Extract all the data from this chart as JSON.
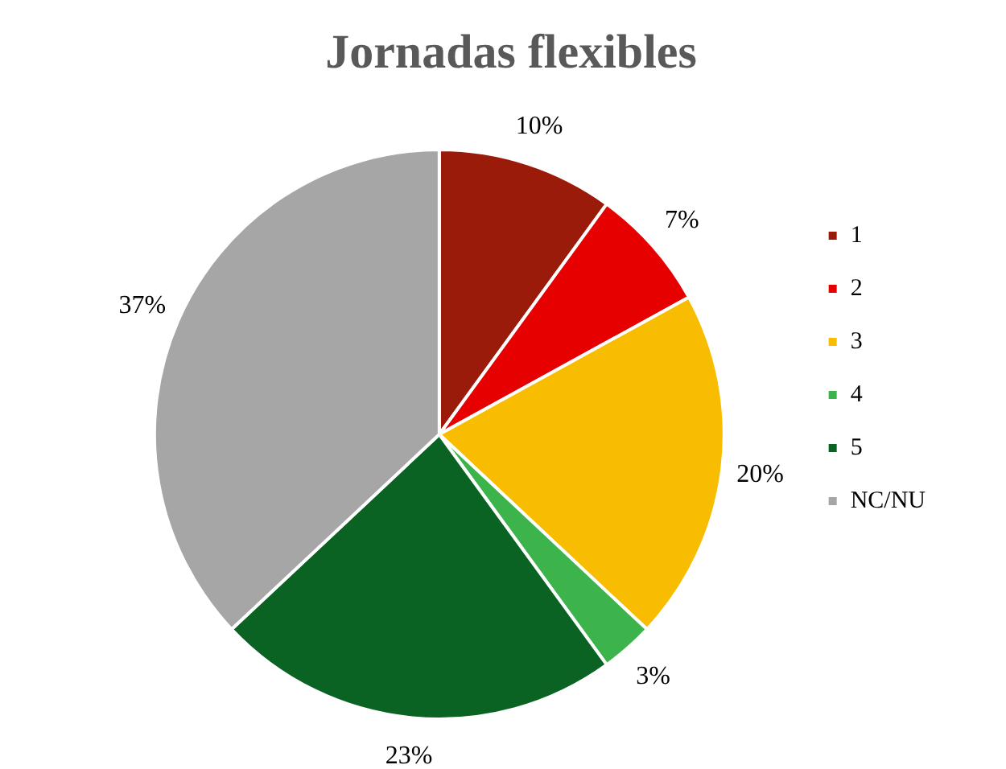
{
  "chart_data": {
    "type": "pie",
    "title": "Jornadas flexibles",
    "categories": [
      "1",
      "2",
      "3",
      "4",
      "5",
      "NC/NU"
    ],
    "values": [
      10,
      7,
      20,
      3,
      23,
      37
    ],
    "colors": [
      "#9b1b0a",
      "#e60000",
      "#f8bd00",
      "#3cb44b",
      "#0b6323",
      "#a6a6a6"
    ],
    "value_labels": [
      "10%",
      "7%",
      "20%",
      "3%",
      "23%",
      "37%"
    ],
    "legend": "right"
  }
}
